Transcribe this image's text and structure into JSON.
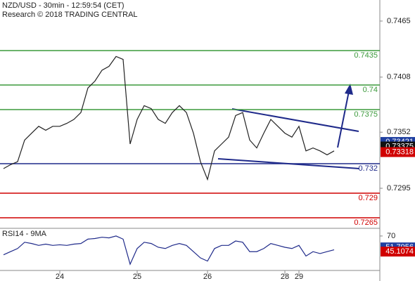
{
  "chart_data": [
    {
      "type": "line",
      "title": "NZD/USD - 30min - 12:59:54 (CET)",
      "subtitle": "Research © 2018 TRADING CENTRAL",
      "ylim": [
        0.72543,
        0.74864
      ],
      "yticks": [
        0.7465,
        0.7408,
        0.7352,
        0.7295
      ],
      "series": [
        {
          "name": null,
          "color": "#222222",
          "values": [
            0.7315,
            0.7319,
            0.7322,
            0.7344,
            0.7351,
            0.7358,
            0.7354,
            0.7358,
            0.7358,
            0.7361,
            0.7365,
            0.7372,
            0.7397,
            0.7404,
            0.7415,
            0.7419,
            0.7429,
            0.7426,
            0.734,
            0.7365,
            0.7379,
            0.7376,
            0.7365,
            0.7361,
            0.7372,
            0.7379,
            0.7372,
            0.7351,
            0.7322,
            0.7304,
            0.7333,
            0.734,
            0.7347,
            0.7369,
            0.7372,
            0.7344,
            0.7336,
            0.7351,
            0.7365,
            0.7358,
            0.7351,
            0.7347,
            0.7358,
            0.7333,
            0.7336,
            0.7333,
            0.7329,
            0.7333
          ]
        }
      ],
      "levels": [
        {
          "value": 0.7435,
          "color": "#3c9a3c"
        },
        {
          "value": 0.74,
          "color": "#3c9a3c"
        },
        {
          "value": 0.7375,
          "color": "#3c9a3c"
        },
        {
          "value": 0.732,
          "color": "#1f2a8a"
        },
        {
          "value": 0.729,
          "color": "#d00000"
        },
        {
          "value": 0.7265,
          "color": "#d00000"
        }
      ],
      "markers": [
        {
          "value": 0.73421,
          "color": "#1f3fa0"
        },
        {
          "value": 0.73375,
          "color": "#111111"
        },
        {
          "value": 0.73318,
          "color": "#d00000"
        }
      ]
    },
    {
      "type": "line",
      "title": "RSI14 - 9MA",
      "ylim": [
        15,
        80
      ],
      "yticks": [
        70
      ],
      "xticks": [
        {
          "value": 8,
          "label": "24"
        },
        {
          "value": 19,
          "label": "25"
        },
        {
          "value": 29,
          "label": "26"
        },
        {
          "value": 40,
          "label": "28"
        },
        {
          "value": 42,
          "label": "29"
        }
      ],
      "series": [
        {
          "name": null,
          "color": "#1f2a8a",
          "values": [
            40,
            45,
            50,
            60,
            58,
            55,
            57,
            55,
            56,
            55,
            57,
            58,
            65,
            66,
            68,
            67,
            70,
            65,
            25,
            50,
            60,
            58,
            52,
            50,
            55,
            58,
            55,
            45,
            35,
            30,
            50,
            55,
            55,
            62,
            60,
            45,
            45,
            50,
            58,
            55,
            52,
            50,
            55,
            38,
            45,
            42,
            45,
            48
          ]
        }
      ],
      "markers": [
        {
          "value": 51.7956,
          "color": "#1f3fa0"
        },
        {
          "value": 45.1074,
          "color": "#d00000"
        }
      ]
    }
  ]
}
